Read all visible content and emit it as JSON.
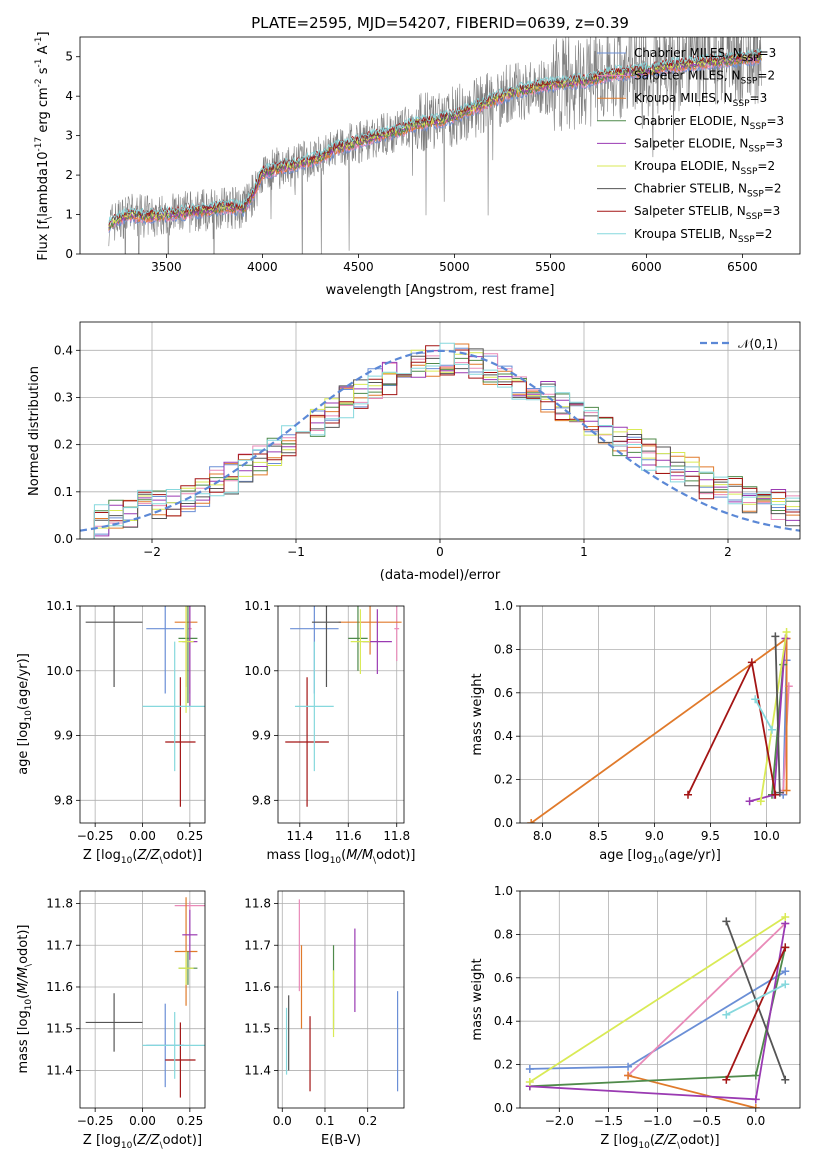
{
  "colors": {
    "chabrier_miles": "#6b8fd6",
    "salpeter_miles": "#e98ab8",
    "kroupa_miles": "#e07a2b",
    "chabrier_elodie": "#4f8a4a",
    "salpeter_elodie": "#9a3ab2",
    "kroupa_elodie": "#d9ea55",
    "chabrier_stelib": "#555555",
    "salpeter_stelib": "#a31515",
    "kroupa_stelib": "#86d8dd",
    "data": "#808080",
    "gauss": "#5b88d6"
  },
  "chart_data": [
    {
      "type": "line",
      "panel": "spectrum",
      "title": "PLATE=2595, MJD=54207, FIBERID=0639, z=0.39",
      "xlabel": "wavelength [Angstrom, rest frame]",
      "ylabel": "Flux [f$_\\lambda$10$^{-17}$ erg cm$^{-2}$ s$^{-1}$ A$^{-1}$]",
      "xlim": [
        3050,
        6800
      ],
      "ylim": [
        0,
        5.5
      ],
      "xticks": [
        3500,
        4000,
        4500,
        5000,
        5500,
        6000,
        6500
      ],
      "yticks": [
        0,
        1,
        2,
        3,
        4,
        5
      ],
      "legend_position": "top-right",
      "continuum": {
        "x": [
          3200,
          3300,
          3400,
          3500,
          3600,
          3700,
          3800,
          3900,
          3950,
          4000,
          4100,
          4200,
          4300,
          4400,
          4500,
          4600,
          4700,
          4800,
          4900,
          5000,
          5100,
          5200,
          5300,
          5400,
          5500,
          5600,
          5700,
          5800,
          5900,
          6000,
          6100,
          6200,
          6300,
          6400,
          6500,
          6600
        ],
        "y": [
          0.75,
          1.0,
          0.95,
          1.0,
          1.05,
          1.1,
          1.2,
          1.15,
          1.5,
          2.05,
          2.2,
          2.3,
          2.45,
          2.7,
          2.85,
          3.0,
          3.1,
          3.3,
          3.35,
          3.5,
          3.7,
          3.9,
          4.1,
          4.2,
          4.3,
          4.35,
          4.4,
          4.55,
          4.6,
          4.65,
          4.75,
          4.8,
          4.85,
          4.9,
          4.95,
          5.0
        ]
      },
      "series": [
        {
          "name": "Chabrier MILES, N$_{SSP}$=3",
          "color_key": "chabrier_miles"
        },
        {
          "name": "Salpeter MILES, N$_{SSP}$=2",
          "color_key": "salpeter_miles"
        },
        {
          "name": "Kroupa MILES, N$_{SSP}$=3",
          "color_key": "kroupa_miles"
        },
        {
          "name": "Chabrier ELODIE, N$_{SSP}$=3",
          "color_key": "chabrier_elodie"
        },
        {
          "name": "Salpeter ELODIE, N$_{SSP}$=3",
          "color_key": "salpeter_elodie"
        },
        {
          "name": "Kroupa ELODIE, N$_{SSP}$=2",
          "color_key": "kroupa_elodie"
        },
        {
          "name": "Chabrier STELIB, N$_{SSP}$=2",
          "color_key": "chabrier_stelib"
        },
        {
          "name": "Salpeter STELIB, N$_{SSP}$=3",
          "color_key": "salpeter_stelib"
        },
        {
          "name": "Kroupa STELIB, N$_{SSP}$=2",
          "color_key": "kroupa_stelib"
        }
      ]
    },
    {
      "type": "histogram",
      "panel": "residuals",
      "xlabel": "(data-model)/error",
      "ylabel": "Normed distribution",
      "xlim": [
        -2.5,
        2.5
      ],
      "ylim": [
        0,
        0.46
      ],
      "xticks": [
        -2,
        -1,
        0,
        1,
        2
      ],
      "yticks": [
        0.0,
        0.1,
        0.2,
        0.3,
        0.4
      ],
      "legend": "$\\mathcal{N}(0,1)$",
      "legend_position": "top-right",
      "bin_edges": [
        -2.5,
        -2.4,
        -2.3,
        -2.2,
        -2.1,
        -2.0,
        -1.9,
        -1.8,
        -1.7,
        -1.6,
        -1.5,
        -1.4,
        -1.3,
        -1.2,
        -1.1,
        -1.0,
        -0.9,
        -0.8,
        -0.7,
        -0.6,
        -0.5,
        -0.4,
        -0.3,
        -0.2,
        -0.1,
        0.0,
        0.1,
        0.2,
        0.3,
        0.4,
        0.5,
        0.6,
        0.7,
        0.8,
        0.9,
        1.0,
        1.1,
        1.2,
        1.3,
        1.4,
        1.5,
        1.6,
        1.7,
        1.8,
        1.9,
        2.0,
        2.1,
        2.2,
        2.3,
        2.4,
        2.5
      ],
      "base_density": [
        0.03,
        0.04,
        0.05,
        0.06,
        0.07,
        0.07,
        0.08,
        0.09,
        0.1,
        0.12,
        0.13,
        0.15,
        0.17,
        0.19,
        0.21,
        0.23,
        0.25,
        0.27,
        0.29,
        0.31,
        0.33,
        0.34,
        0.36,
        0.37,
        0.38,
        0.38,
        0.38,
        0.37,
        0.36,
        0.35,
        0.33,
        0.31,
        0.3,
        0.28,
        0.26,
        0.25,
        0.23,
        0.21,
        0.2,
        0.18,
        0.17,
        0.15,
        0.14,
        0.12,
        0.11,
        0.1,
        0.09,
        0.08,
        0.07,
        0.06
      ]
    },
    {
      "type": "errorbar",
      "panel": "Z_vs_age",
      "xlabel": "Z [log$_{10}$($Z/Z_\\odot$)]",
      "ylabel": "age  [log$_{10}$($age/yr$)]",
      "xlim": [
        -0.33,
        0.33
      ],
      "ylim": [
        9.765,
        10.1
      ],
      "xticks": [
        -0.25,
        0.0,
        0.25
      ],
      "yticks": [
        9.8,
        9.9,
        10.0,
        10.1
      ],
      "points": [
        {
          "color_key": "chabrier_miles",
          "x": 0.12,
          "y": 10.065,
          "xerr": 0.1,
          "yerr": 0.1
        },
        {
          "color_key": "salpeter_miles",
          "x": 0.25,
          "y": 10.065,
          "xerr": 0.01,
          "yerr": 0.1
        },
        {
          "color_key": "kroupa_miles",
          "x": 0.23,
          "y": 10.075,
          "xerr": 0.06,
          "yerr": 0.1
        },
        {
          "color_key": "chabrier_elodie",
          "x": 0.24,
          "y": 10.05,
          "xerr": 0.05,
          "yerr": 0.1
        },
        {
          "color_key": "salpeter_elodie",
          "x": 0.25,
          "y": 10.045,
          "xerr": 0.04,
          "yerr": 0.1
        },
        {
          "color_key": "kroupa_elodie",
          "x": 0.23,
          "y": 10.045,
          "xerr": 0.04,
          "yerr": 0.11
        },
        {
          "color_key": "chabrier_stelib",
          "x": -0.15,
          "y": 10.075,
          "xerr": 0.15,
          "yerr": 0.1
        },
        {
          "color_key": "salpeter_stelib",
          "x": 0.2,
          "y": 9.89,
          "xerr": 0.08,
          "yerr": 0.1
        },
        {
          "color_key": "kroupa_stelib",
          "x": 0.17,
          "y": 9.945,
          "xerr": 0.17,
          "yerr": 0.1
        }
      ]
    },
    {
      "type": "errorbar",
      "panel": "mass_vs_age",
      "xlabel": "mass [log$_{10}$($M/M_\\odot$)]",
      "ylabel": "",
      "xlim": [
        11.31,
        11.83
      ],
      "ylim": [
        9.765,
        10.1
      ],
      "xticks": [
        11.4,
        11.6,
        11.8
      ],
      "yticks": [
        9.8,
        9.9,
        10.0,
        10.1
      ],
      "points": [
        {
          "color_key": "chabrier_miles",
          "x": 11.46,
          "y": 10.065,
          "xerr": 0.1,
          "yerr": 0.1
        },
        {
          "color_key": "salpeter_miles",
          "x": 11.8,
          "y": 10.065,
          "xerr": 0.01,
          "yerr": 0.05
        },
        {
          "color_key": "kroupa_miles",
          "x": 11.69,
          "y": 10.075,
          "xerr": 0.13,
          "yerr": 0.05
        },
        {
          "color_key": "chabrier_elodie",
          "x": 11.64,
          "y": 10.05,
          "xerr": 0.04,
          "yerr": 0.05
        },
        {
          "color_key": "salpeter_elodie",
          "x": 11.72,
          "y": 10.045,
          "xerr": 0.06,
          "yerr": 0.05
        },
        {
          "color_key": "kroupa_elodie",
          "x": 11.65,
          "y": 10.045,
          "xerr": 0.04,
          "yerr": 0.05
        },
        {
          "color_key": "chabrier_stelib",
          "x": 11.51,
          "y": 10.075,
          "xerr": 0.06,
          "yerr": 0.1
        },
        {
          "color_key": "salpeter_stelib",
          "x": 11.43,
          "y": 9.89,
          "xerr": 0.09,
          "yerr": 0.1
        },
        {
          "color_key": "kroupa_stelib",
          "x": 11.46,
          "y": 9.945,
          "xerr": 0.08,
          "yerr": 0.1
        }
      ]
    },
    {
      "type": "line",
      "panel": "age_vs_weight",
      "xlabel": "age  [log$_{10}$($age/yr$)]",
      "ylabel": "mass weight",
      "xlim": [
        7.8,
        10.3
      ],
      "ylim": [
        0,
        1.0
      ],
      "xticks": [
        8.0,
        8.5,
        9.0,
        9.5,
        10.0
      ],
      "yticks": [
        0.0,
        0.2,
        0.4,
        0.6,
        0.8,
        1.0
      ],
      "series": [
        {
          "color_key": "chabrier_miles",
          "points": [
            [
              10.15,
              0.13
            ],
            [
              10.18,
              0.75
            ]
          ]
        },
        {
          "color_key": "salpeter_miles",
          "points": [
            [
              10.15,
              0.15
            ],
            [
              10.2,
              0.63
            ]
          ]
        },
        {
          "color_key": "kroupa_miles",
          "points": [
            [
              7.9,
              0.0
            ],
            [
              10.18,
              0.85
            ],
            [
              10.18,
              0.15
            ]
          ]
        },
        {
          "color_key": "chabrier_elodie",
          "points": [
            [
              10.05,
              0.13
            ],
            [
              10.15,
              0.73
            ]
          ]
        },
        {
          "color_key": "salpeter_elodie",
          "points": [
            [
              9.85,
              0.1
            ],
            [
              10.07,
              0.13
            ],
            [
              10.17,
              0.85
            ]
          ]
        },
        {
          "color_key": "kroupa_elodie",
          "points": [
            [
              9.95,
              0.1
            ],
            [
              10.18,
              0.88
            ]
          ]
        },
        {
          "color_key": "chabrier_stelib",
          "points": [
            [
              10.08,
              0.86
            ],
            [
              10.12,
              0.14
            ]
          ]
        },
        {
          "color_key": "salpeter_stelib",
          "points": [
            [
              9.3,
              0.13
            ],
            [
              9.87,
              0.74
            ],
            [
              10.08,
              0.13
            ]
          ]
        },
        {
          "color_key": "kroupa_stelib",
          "points": [
            [
              9.9,
              0.57
            ],
            [
              10.05,
              0.43
            ]
          ]
        }
      ]
    },
    {
      "type": "errorbar",
      "panel": "Z_vs_mass",
      "xlabel": "Z [log$_{10}$($Z/Z_\\odot$)]",
      "ylabel": "mass [log$_{10}$($M/M_\\odot$)]",
      "xlim": [
        -0.33,
        0.33
      ],
      "ylim": [
        11.31,
        11.83
      ],
      "xticks": [
        -0.25,
        0.0,
        0.25
      ],
      "yticks": [
        11.4,
        11.5,
        11.6,
        11.7,
        11.8
      ],
      "points": [
        {
          "color_key": "chabrier_miles",
          "x": 0.12,
          "y": 11.46,
          "xerr": 0.1,
          "yerr": 0.1
        },
        {
          "color_key": "salpeter_miles",
          "x": 0.25,
          "y": 11.795,
          "xerr": 0.08,
          "yerr": 0.01
        },
        {
          "color_key": "kroupa_miles",
          "x": 0.23,
          "y": 11.685,
          "xerr": 0.06,
          "yerr": 0.13
        },
        {
          "color_key": "chabrier_elodie",
          "x": 0.24,
          "y": 11.645,
          "xerr": 0.05,
          "yerr": 0.04
        },
        {
          "color_key": "salpeter_elodie",
          "x": 0.25,
          "y": 11.725,
          "xerr": 0.04,
          "yerr": 0.06
        },
        {
          "color_key": "kroupa_elodie",
          "x": 0.23,
          "y": 11.645,
          "xerr": 0.04,
          "yerr": 0.04
        },
        {
          "color_key": "chabrier_stelib",
          "x": -0.15,
          "y": 11.515,
          "xerr": 0.15,
          "yerr": 0.07
        },
        {
          "color_key": "salpeter_stelib",
          "x": 0.2,
          "y": 11.425,
          "xerr": 0.08,
          "yerr": 0.09
        },
        {
          "color_key": "kroupa_stelib",
          "x": 0.17,
          "y": 11.46,
          "xerr": 0.17,
          "yerr": 0.08
        }
      ]
    },
    {
      "type": "errorbar",
      "panel": "ebv_vs_mass",
      "xlabel": "E(B-V)",
      "ylabel": "",
      "xlim": [
        -0.01,
        0.285
      ],
      "ylim": [
        11.31,
        11.83
      ],
      "xticks": [
        0.0,
        0.1,
        0.2
      ],
      "yticks": [
        11.4,
        11.5,
        11.6,
        11.7,
        11.8
      ],
      "points": [
        {
          "color_key": "chabrier_miles",
          "x": 0.27,
          "y": 11.47,
          "xerr": 0,
          "yerr": 0.12
        },
        {
          "color_key": "salpeter_miles",
          "x": 0.04,
          "y": 11.7,
          "xerr": 0,
          "yerr": 0.11
        },
        {
          "color_key": "kroupa_miles",
          "x": 0.045,
          "y": 11.6,
          "xerr": 0,
          "yerr": 0.1
        },
        {
          "color_key": "chabrier_elodie",
          "x": 0.12,
          "y": 11.6,
          "xerr": 0,
          "yerr": 0.1
        },
        {
          "color_key": "salpeter_elodie",
          "x": 0.17,
          "y": 11.64,
          "xerr": 0,
          "yerr": 0.1
        },
        {
          "color_key": "kroupa_elodie",
          "x": 0.12,
          "y": 11.56,
          "xerr": 0,
          "yerr": 0.08
        },
        {
          "color_key": "chabrier_stelib",
          "x": 0.015,
          "y": 11.49,
          "xerr": 0,
          "yerr": 0.09
        },
        {
          "color_key": "salpeter_stelib",
          "x": 0.065,
          "y": 11.44,
          "xerr": 0,
          "yerr": 0.09
        },
        {
          "color_key": "kroupa_stelib",
          "x": 0.01,
          "y": 11.47,
          "xerr": 0,
          "yerr": 0.08
        }
      ]
    },
    {
      "type": "line",
      "panel": "Z_vs_weight",
      "xlabel": "Z [log$_{10}$($Z/Z_\\odot$)]",
      "ylabel": "mass weight",
      "xlim": [
        -2.4,
        0.45
      ],
      "ylim": [
        0,
        1.0
      ],
      "xticks": [
        -2.0,
        -1.5,
        -1.0,
        -0.5,
        0.0
      ],
      "yticks": [
        0.0,
        0.2,
        0.4,
        0.6,
        0.8,
        1.0
      ],
      "series": [
        {
          "color_key": "chabrier_miles",
          "points": [
            [
              -2.3,
              0.18
            ],
            [
              -1.3,
              0.19
            ],
            [
              0.3,
              0.63
            ]
          ]
        },
        {
          "color_key": "salpeter_miles",
          "points": [
            [
              -1.3,
              0.15
            ],
            [
              0.3,
              0.85
            ]
          ]
        },
        {
          "color_key": "kroupa_miles",
          "points": [
            [
              -1.3,
              0.15
            ],
            [
              0.0,
              0.0
            ]
          ]
        },
        {
          "color_key": "chabrier_elodie",
          "points": [
            [
              -2.3,
              0.1
            ],
            [
              0.0,
              0.15
            ],
            [
              0.3,
              0.74
            ]
          ]
        },
        {
          "color_key": "salpeter_elodie",
          "points": [
            [
              -2.3,
              0.1
            ],
            [
              0.0,
              0.04
            ],
            [
              0.3,
              0.85
            ]
          ]
        },
        {
          "color_key": "kroupa_elodie",
          "points": [
            [
              -2.3,
              0.12
            ],
            [
              0.3,
              0.88
            ]
          ]
        },
        {
          "color_key": "chabrier_stelib",
          "points": [
            [
              -0.3,
              0.86
            ],
            [
              0.3,
              0.13
            ]
          ]
        },
        {
          "color_key": "salpeter_stelib",
          "points": [
            [
              -0.3,
              0.13
            ],
            [
              0.3,
              0.74
            ]
          ]
        },
        {
          "color_key": "kroupa_stelib",
          "points": [
            [
              -0.3,
              0.43
            ],
            [
              0.3,
              0.57
            ]
          ]
        }
      ]
    }
  ]
}
